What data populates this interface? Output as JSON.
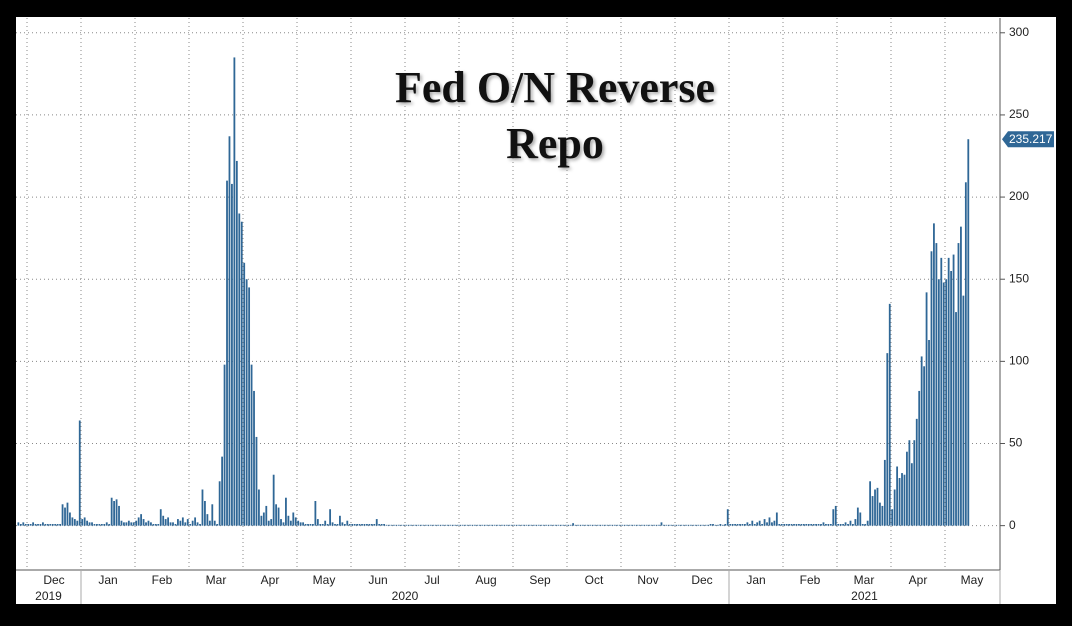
{
  "chart_data": {
    "type": "bar",
    "title": "Fed O/N Reverse Repo",
    "color": "#2f6796",
    "grid": true,
    "ylim": [
      -27,
      309
    ],
    "yticks": [
      0,
      50,
      100,
      150,
      200,
      250,
      300
    ],
    "years": [
      "2019",
      "2020",
      "2021"
    ],
    "months": [
      {
        "label": null,
        "values": [
          2,
          1,
          2,
          1
        ]
      },
      {
        "label": "Dec",
        "values": [
          1,
          1,
          2,
          1,
          1,
          1,
          2,
          1,
          1,
          1,
          1,
          1,
          1,
          1,
          13,
          11,
          14,
          8,
          5,
          4,
          3,
          64
        ]
      },
      {
        "label": "Jan",
        "values": [
          4,
          5,
          3,
          2,
          2,
          1,
          1,
          1,
          1,
          1,
          2,
          1,
          17,
          15,
          16,
          12,
          3,
          2,
          2,
          3,
          2,
          2
        ]
      },
      {
        "label": "Feb",
        "values": [
          3,
          5,
          7,
          4,
          2,
          3,
          2,
          1,
          1,
          1,
          10,
          6,
          4,
          5,
          2,
          2,
          1,
          4,
          3,
          5,
          2,
          4
        ]
      },
      {
        "label": "Mar",
        "values": [
          1,
          3,
          5,
          2,
          1,
          22,
          15,
          7,
          3,
          13,
          3,
          1,
          27,
          42,
          98,
          210,
          237,
          208,
          285,
          222,
          190,
          185
        ]
      },
      {
        "label": "Apr",
        "values": [
          160,
          150,
          145,
          98,
          82,
          54,
          22,
          6,
          8,
          12,
          3,
          4,
          31,
          13,
          11,
          4,
          2,
          17,
          6,
          3,
          8,
          5
        ]
      },
      {
        "label": "May",
        "values": [
          3,
          2,
          2,
          1,
          1,
          1,
          1,
          15,
          4,
          1,
          1,
          3,
          1,
          10,
          2,
          1,
          1,
          6,
          2,
          1,
          3,
          1
        ]
      },
      {
        "label": "Jun",
        "values": [
          1,
          1,
          1,
          1,
          1,
          1,
          1,
          1,
          1,
          1,
          4,
          1,
          1,
          1,
          0.5,
          0.5,
          0.5,
          0.5,
          0.5,
          0.5,
          0.5,
          0.5
        ]
      },
      {
        "label": "Jul",
        "values": [
          0.5,
          0.5,
          0.5,
          0.5,
          0.5,
          0.5,
          0.5,
          0.5,
          0.5,
          0.5,
          0.5,
          0.5,
          0.5,
          0.5,
          0.5,
          0.5,
          0.5,
          0.5,
          0.5,
          0.5,
          0.5,
          0.5
        ]
      },
      {
        "label": "Aug",
        "values": [
          0.5,
          0.5,
          0.5,
          0.5,
          0.5,
          0.5,
          0.5,
          0.5,
          0.5,
          0.5,
          0.5,
          0.5,
          0.5,
          0.5,
          0.5,
          0.5,
          0.5,
          0.5,
          0.5,
          0.5,
          0.5,
          0.5
        ]
      },
      {
        "label": "Sep",
        "values": [
          0.5,
          0.5,
          0.5,
          0.5,
          0.5,
          0.5,
          0.5,
          0.5,
          0.5,
          0.5,
          0.5,
          0.5,
          0.5,
          0.5,
          0.5,
          0.5,
          0.5,
          0.5,
          0.5,
          0.5,
          0.5,
          0.5
        ]
      },
      {
        "label": "Oct",
        "values": [
          0.5,
          0.5,
          1.5,
          0.5,
          0.5,
          0.5,
          0.5,
          0.5,
          0.5,
          0.5,
          0.5,
          0.5,
          0.5,
          0.5,
          0.5,
          0.5,
          0.5,
          0.5,
          0.5,
          0.5,
          0.5,
          0.5
        ]
      },
      {
        "label": "Nov",
        "values": [
          0.5,
          0.5,
          0.5,
          0.5,
          0.5,
          0.5,
          0.5,
          0.5,
          0.5,
          0.5,
          0.5,
          0.5,
          0.5,
          0.5,
          0.5,
          0.5,
          2,
          0.5,
          0.5,
          0.5,
          0.5,
          0.5
        ]
      },
      {
        "label": "Dec",
        "values": [
          0.5,
          0.5,
          0.5,
          0.5,
          0.5,
          0.5,
          0.5,
          0.5,
          0.5,
          0.5,
          0.5,
          0.5,
          0.5,
          0.5,
          1,
          1,
          0.5,
          0.5,
          1,
          0.5,
          1,
          10
        ]
      },
      {
        "label": "Jan",
        "values": [
          1,
          1,
          1,
          1,
          1,
          1,
          1,
          2,
          1,
          3,
          1,
          2,
          3,
          1,
          4,
          2,
          5,
          2,
          3,
          8,
          1,
          1
        ]
      },
      {
        "label": "Feb",
        "values": [
          1,
          1,
          1,
          1,
          1,
          1,
          1,
          1,
          1,
          1,
          1,
          1,
          1,
          1,
          1,
          1,
          2,
          1,
          1,
          1,
          10,
          12
        ]
      },
      {
        "label": "Mar",
        "values": [
          1,
          1,
          1,
          2,
          1,
          3,
          1,
          4,
          11,
          8,
          1,
          1,
          3,
          27,
          18,
          22,
          23,
          14,
          12,
          40,
          105,
          135
        ]
      },
      {
        "label": "Apr",
        "values": [
          10,
          22,
          36,
          29,
          32,
          31,
          45,
          52,
          38,
          52,
          65,
          82,
          103,
          97,
          142,
          113,
          167,
          184,
          172,
          150,
          163,
          148
        ]
      },
      {
        "label": "May",
        "values": [
          150,
          163,
          155,
          165,
          130,
          172,
          182,
          140,
          209,
          235.217
        ]
      }
    ]
  }
}
